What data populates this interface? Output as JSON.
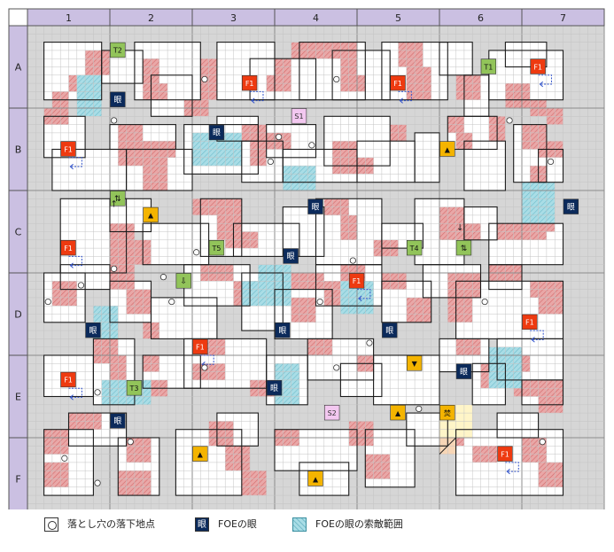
{
  "columns": [
    "1",
    "2",
    "3",
    "4",
    "5",
    "6",
    "7"
  ],
  "rows": [
    "A",
    "B",
    "C",
    "D",
    "E",
    "F"
  ],
  "grid": {
    "cols": 7,
    "rows": 6,
    "cells_per_block": 10
  },
  "colors": {
    "header_bg": "#cbc0e2",
    "floor": "#ffffff",
    "wall": "#d6d6d6",
    "damage_floor": "#e9a7a7",
    "foe_range": "#a9dde6",
    "foe_eye": "#0b2a5b",
    "f1": "#ee3a10",
    "teleport": "#92c45a",
    "stairs": "#f4b400",
    "special_area": "#fff5c8",
    "s_marker": "#f3c8f0"
  },
  "markers": {
    "eye_label": "眼",
    "f1_label": "F1",
    "t_labels": [
      "T1",
      "T2",
      "T3",
      "T4",
      "T5"
    ],
    "s_labels": [
      "S1",
      "S2"
    ],
    "fire_label": "焚",
    "updown": "⇅",
    "down_arrow_green": "⇩",
    "arrow_up": "↑",
    "arrow_down": "↓",
    "stairs_up": "▲",
    "stairs_down": "▼"
  },
  "legend": {
    "pit": "落とし穴の落下地点",
    "eye": "FOEの眼",
    "range": "FOEの眼の索敵範囲"
  }
}
